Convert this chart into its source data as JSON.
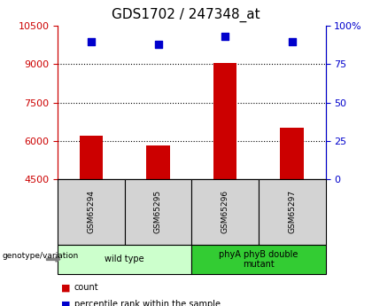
{
  "title": "GDS1702 / 247348_at",
  "samples": [
    "GSM65294",
    "GSM65295",
    "GSM65296",
    "GSM65297"
  ],
  "counts": [
    6200,
    5820,
    9050,
    6500
  ],
  "percentiles": [
    90,
    88,
    93,
    90
  ],
  "ylim_left": [
    4500,
    10500
  ],
  "ylim_right": [
    0,
    100
  ],
  "yticks_left": [
    4500,
    6000,
    7500,
    9000,
    10500
  ],
  "yticks_right": [
    0,
    25,
    50,
    75,
    100
  ],
  "bar_color": "#cc0000",
  "scatter_color": "#0000cc",
  "group_info": [
    {
      "indices": [
        0,
        1
      ],
      "label": "wild type",
      "color": "#ccffcc"
    },
    {
      "indices": [
        2,
        3
      ],
      "label": "phyA phyB double\nmutant",
      "color": "#33cc33"
    }
  ],
  "genotype_label": "genotype/variation",
  "background_color": "#ffffff",
  "plot_bg_color": "#ffffff",
  "left_tick_color": "#cc0000",
  "right_tick_color": "#0000cc",
  "sample_box_color": "#d3d3d3",
  "bar_width": 0.35,
  "title_fontsize": 11,
  "tick_fontsize": 8,
  "label_fontsize": 7.5
}
